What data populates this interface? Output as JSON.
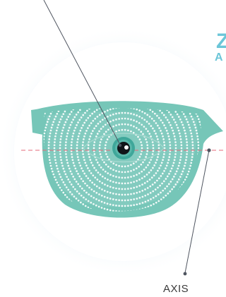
{
  "labels": {
    "axis": "AXIS"
  },
  "colors": {
    "lens_frame": "#76c6b8",
    "dots": "#8fd0c5",
    "axis_line": "#e56a7a",
    "leader_line": "#4f5560",
    "circle_bg": "#ffffff",
    "glow": "#dfeef6",
    "accent_text": "#6cc6d8"
  },
  "icons": {
    "eye": "eye-icon",
    "pupil": "pupil-icon"
  }
}
